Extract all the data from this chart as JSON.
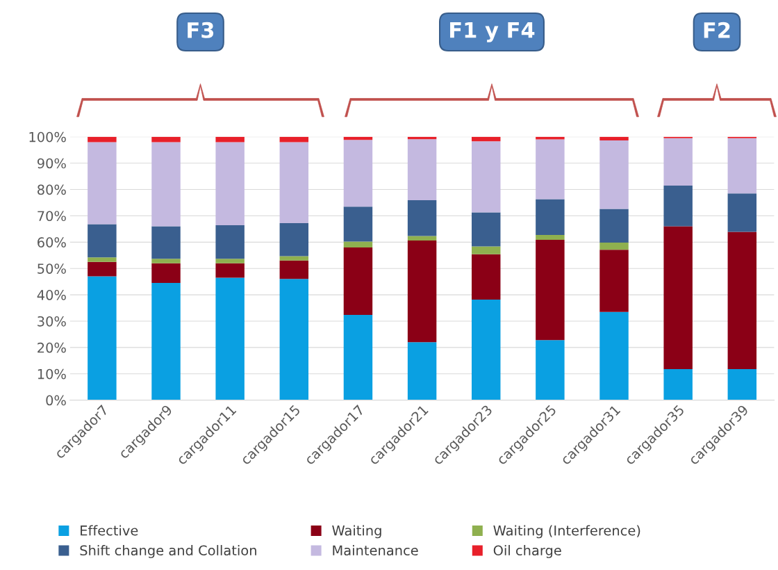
{
  "chart_data": {
    "type": "bar",
    "stacked": true,
    "categories": [
      "cargador7",
      "cargador9",
      "cargador11",
      "cargador15",
      "cargador17",
      "cargador21",
      "cargador23",
      "cargador25",
      "cargador31",
      "cargador35",
      "cargador39"
    ],
    "series": [
      {
        "name": "Effective",
        "color": "#0aa0e2",
        "values": [
          47,
          44.5,
          46.5,
          46,
          32.4,
          22,
          38.2,
          22.8,
          33.5,
          11.8,
          11.8
        ]
      },
      {
        "name": "Waiting",
        "color": "#8b0016",
        "values": [
          5.5,
          7.5,
          5.5,
          7,
          25.6,
          38.6,
          17.2,
          38.1,
          23.6,
          54.2,
          52.1
        ]
      },
      {
        "name": "Waiting (Interference)",
        "color": "#8fb04f",
        "values": [
          1.7,
          1.7,
          1.7,
          1.7,
          2.2,
          1.7,
          3.0,
          1.8,
          2.7,
          0,
          0
        ]
      },
      {
        "name": "Shift change and Collation",
        "color": "#3a5f8f",
        "values": [
          12.6,
          12.3,
          12.7,
          12.5,
          13.3,
          13.6,
          12.9,
          13.6,
          12.8,
          15.5,
          14.6
        ]
      },
      {
        "name": "Maintenance",
        "color": "#c4b9e0",
        "values": [
          31.2,
          32,
          31.6,
          30.8,
          25.3,
          23.2,
          27,
          22.7,
          26,
          18,
          21
        ]
      },
      {
        "name": "Oil charge",
        "color": "#e8202a",
        "values": [
          2,
          2,
          2,
          2,
          1.2,
          0.9,
          1.7,
          1.0,
          1.4,
          0.5,
          0.5
        ]
      }
    ],
    "ylim": [
      0,
      100
    ],
    "yticks": [
      {
        "value": 0,
        "label": "0%"
      },
      {
        "value": 10,
        "label": "10%"
      },
      {
        "value": 20,
        "label": "20%"
      },
      {
        "value": 30,
        "label": "30%"
      },
      {
        "value": 40,
        "label": "40%"
      },
      {
        "value": 50,
        "label": "50%"
      },
      {
        "value": 60,
        "label": "60%"
      },
      {
        "value": 70,
        "label": "70%"
      },
      {
        "value": 80,
        "label": "80%"
      },
      {
        "value": 90,
        "label": "90%"
      },
      {
        "value": 100,
        "label": "100%"
      }
    ],
    "grid": "y",
    "legend": "bottom",
    "annotations": [
      "F3",
      "F1 y F4",
      "F2"
    ]
  }
}
